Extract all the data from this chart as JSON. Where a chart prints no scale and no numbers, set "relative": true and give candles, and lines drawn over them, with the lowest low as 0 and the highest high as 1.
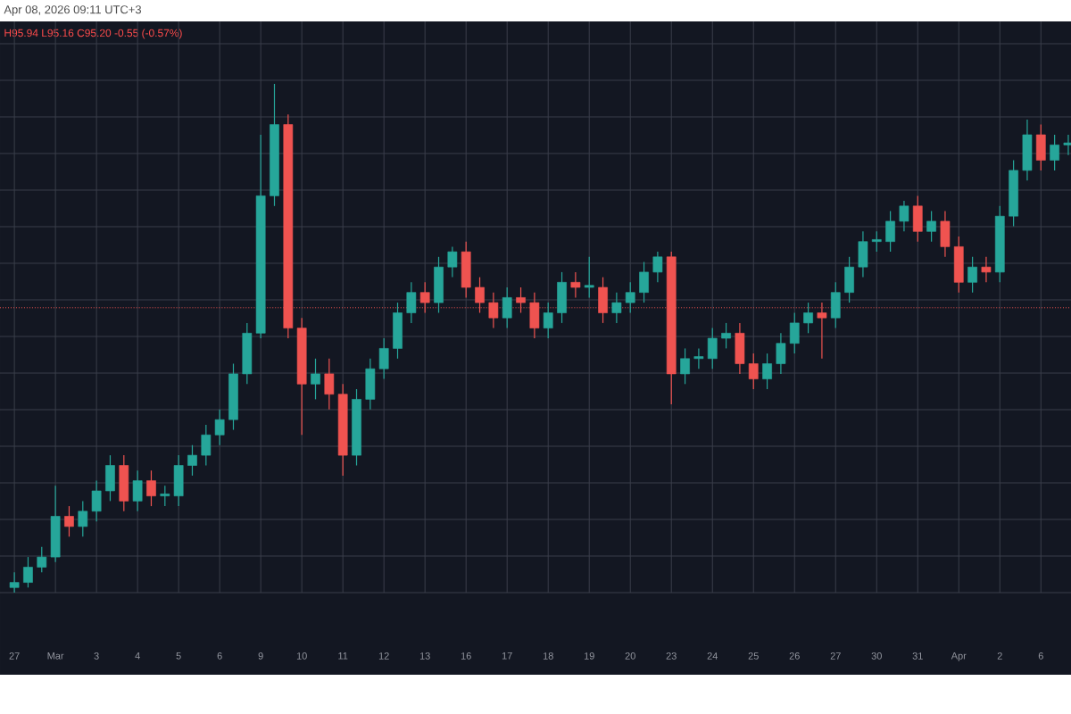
{
  "chart_data": {
    "type": "candlestick",
    "title": "Apr 08, 2026 09:11 UTC+3",
    "subtitle": "H95.94 L95.16 C95.20 -0.55 (-0.57%)",
    "relative": true,
    "grid": true,
    "categories": [
      "27",
      null,
      null,
      "Mar",
      null,
      null,
      "3",
      null,
      null,
      "4",
      null,
      null,
      "5",
      null,
      null,
      "6",
      null,
      null,
      "9",
      null,
      null,
      "10",
      null,
      null,
      "11",
      null,
      null,
      "12",
      null,
      null,
      "13",
      null,
      null,
      "16",
      null,
      null,
      "17",
      null,
      null,
      "18",
      null,
      null,
      "19",
      null,
      null,
      "20",
      null,
      null,
      "23",
      null,
      null,
      "24",
      null,
      null,
      "25",
      null,
      null,
      "26",
      null,
      null,
      "27",
      null,
      null,
      "30",
      null,
      null,
      "31",
      null,
      null,
      "Apr",
      null,
      null,
      "2",
      null,
      null,
      "6",
      null,
      null
    ],
    "ohlc": [
      [
        0.01,
        0.04,
        0,
        0.02
      ],
      [
        0.02,
        0.07,
        0.01,
        0.05
      ],
      [
        0.05,
        0.09,
        0.04,
        0.07
      ],
      [
        0.07,
        0.21,
        0.06,
        0.15
      ],
      [
        0.15,
        0.17,
        0.11,
        0.13
      ],
      [
        0.13,
        0.18,
        0.11,
        0.16
      ],
      [
        0.16,
        0.22,
        0.14,
        0.2
      ],
      [
        0.2,
        0.27,
        0.18,
        0.25
      ],
      [
        0.25,
        0.27,
        0.16,
        0.18
      ],
      [
        0.18,
        0.24,
        0.16,
        0.22
      ],
      [
        0.22,
        0.24,
        0.17,
        0.19
      ],
      [
        0.19,
        0.21,
        0.17,
        0.19
      ],
      [
        0.19,
        0.27,
        0.17,
        0.25
      ],
      [
        0.25,
        0.29,
        0.23,
        0.27
      ],
      [
        0.27,
        0.33,
        0.25,
        0.31
      ],
      [
        0.31,
        0.36,
        0.29,
        0.34
      ],
      [
        0.34,
        0.45,
        0.32,
        0.43
      ],
      [
        0.43,
        0.53,
        0.41,
        0.51
      ],
      [
        0.51,
        0.9,
        0.5,
        0.78
      ],
      [
        0.78,
        1,
        0.76,
        0.92
      ],
      [
        0.92,
        0.94,
        0.5,
        0.52
      ],
      [
        0.52,
        0.54,
        0.31,
        0.41
      ],
      [
        0.41,
        0.46,
        0.38,
        0.43
      ],
      [
        0.43,
        0.46,
        0.36,
        0.39
      ],
      [
        0.39,
        0.41,
        0.23,
        0.27
      ],
      [
        0.27,
        0.4,
        0.25,
        0.38
      ],
      [
        0.38,
        0.46,
        0.36,
        0.44
      ],
      [
        0.44,
        0.5,
        0.42,
        0.48
      ],
      [
        0.48,
        0.57,
        0.46,
        0.55
      ],
      [
        0.55,
        0.61,
        0.53,
        0.59
      ],
      [
        0.59,
        0.61,
        0.55,
        0.57
      ],
      [
        0.57,
        0.66,
        0.55,
        0.64
      ],
      [
        0.64,
        0.68,
        0.62,
        0.67
      ],
      [
        0.67,
        0.69,
        0.58,
        0.6
      ],
      [
        0.6,
        0.62,
        0.55,
        0.57
      ],
      [
        0.57,
        0.59,
        0.52,
        0.54
      ],
      [
        0.54,
        0.6,
        0.52,
        0.58
      ],
      [
        0.58,
        0.6,
        0.55,
        0.57
      ],
      [
        0.57,
        0.59,
        0.5,
        0.52
      ],
      [
        0.52,
        0.57,
        0.5,
        0.55
      ],
      [
        0.55,
        0.63,
        0.53,
        0.61
      ],
      [
        0.61,
        0.63,
        0.58,
        0.6
      ],
      [
        0.6,
        0.66,
        0.58,
        0.6
      ],
      [
        0.6,
        0.62,
        0.53,
        0.55
      ],
      [
        0.55,
        0.59,
        0.53,
        0.57
      ],
      [
        0.57,
        0.61,
        0.55,
        0.59
      ],
      [
        0.59,
        0.65,
        0.57,
        0.63
      ],
      [
        0.63,
        0.67,
        0.61,
        0.66
      ],
      [
        0.66,
        0.67,
        0.37,
        0.43
      ],
      [
        0.43,
        0.48,
        0.41,
        0.46
      ],
      [
        0.46,
        0.48,
        0.44,
        0.46
      ],
      [
        0.46,
        0.52,
        0.44,
        0.5
      ],
      [
        0.5,
        0.53,
        0.48,
        0.51
      ],
      [
        0.51,
        0.53,
        0.43,
        0.45
      ],
      [
        0.45,
        0.47,
        0.4,
        0.42
      ],
      [
        0.42,
        0.47,
        0.4,
        0.45
      ],
      [
        0.45,
        0.51,
        0.43,
        0.49
      ],
      [
        0.49,
        0.55,
        0.47,
        0.53
      ],
      [
        0.53,
        0.57,
        0.51,
        0.55
      ],
      [
        0.55,
        0.57,
        0.46,
        0.54
      ],
      [
        0.54,
        0.61,
        0.52,
        0.59
      ],
      [
        0.59,
        0.66,
        0.57,
        0.64
      ],
      [
        0.64,
        0.71,
        0.62,
        0.69
      ],
      [
        0.69,
        0.71,
        0.67,
        0.69
      ],
      [
        0.69,
        0.75,
        0.67,
        0.73
      ],
      [
        0.73,
        0.77,
        0.71,
        0.76
      ],
      [
        0.76,
        0.78,
        0.69,
        0.71
      ],
      [
        0.71,
        0.75,
        0.69,
        0.73
      ],
      [
        0.73,
        0.75,
        0.66,
        0.68
      ],
      [
        0.68,
        0.7,
        0.59,
        0.61
      ],
      [
        0.61,
        0.66,
        0.59,
        0.64
      ],
      [
        0.64,
        0.66,
        0.61,
        0.63
      ],
      [
        0.63,
        0.76,
        0.61,
        0.74
      ],
      [
        0.74,
        0.85,
        0.72,
        0.83
      ],
      [
        0.83,
        0.93,
        0.81,
        0.9
      ],
      [
        0.9,
        0.92,
        0.83,
        0.85
      ],
      [
        0.85,
        0.9,
        0.83,
        0.88
      ],
      [
        0.88,
        0.9,
        0.86,
        0.88
      ]
    ],
    "colors": [
      "#26a69a",
      "#26a69a",
      "#26a69a",
      "#26a69a",
      "#ef5350",
      "#26a69a",
      "#26a69a",
      "#26a69a",
      "#ef5350",
      "#26a69a",
      "#ef5350",
      "#26a69a",
      "#26a69a",
      "#26a69a",
      "#26a69a",
      "#26a69a",
      "#26a69a",
      "#26a69a",
      "#26a69a",
      "#26a69a",
      "#ef5350",
      "#ef5350",
      "#26a69a",
      "#ef5350",
      "#ef5350",
      "#26a69a",
      "#26a69a",
      "#26a69a",
      "#26a69a",
      "#26a69a",
      "#ef5350",
      "#26a69a",
      "#26a69a",
      "#ef5350",
      "#ef5350",
      "#ef5350",
      "#26a69a",
      "#ef5350",
      "#ef5350",
      "#26a69a",
      "#26a69a",
      "#ef5350",
      "#26a69a",
      "#ef5350",
      "#26a69a",
      "#26a69a",
      "#26a69a",
      "#26a69a",
      "#ef5350",
      "#26a69a",
      "#26a69a",
      "#26a69a",
      "#26a69a",
      "#ef5350",
      "#ef5350",
      "#26a69a",
      "#26a69a",
      "#26a69a",
      "#26a69a",
      "#ef5350",
      "#26a69a",
      "#26a69a",
      "#26a69a",
      "#26a69a",
      "#26a69a",
      "#26a69a",
      "#ef5350",
      "#26a69a",
      "#ef5350",
      "#ef5350",
      "#26a69a",
      "#ef5350",
      "#26a69a",
      "#26a69a",
      "#26a69a",
      "#ef5350",
      "#26a69a",
      "#26a69a"
    ],
    "ref_lines": [
      {
        "axis": "y",
        "value": 0.56,
        "color": "#ef5350",
        "line_style": "dotted"
      }
    ]
  }
}
